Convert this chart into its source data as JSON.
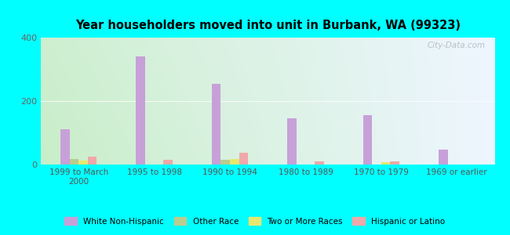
{
  "title": "Year householders moved into unit in Burbank, WA (99323)",
  "categories": [
    "1999 to March\n2000",
    "1995 to 1998",
    "1990 to 1994",
    "1980 to 1989",
    "1970 to 1979",
    "1969 or earlier"
  ],
  "series": {
    "White Non-Hispanic": [
      110,
      340,
      255,
      145,
      155,
      48
    ],
    "Other Race": [
      18,
      0,
      14,
      0,
      0,
      0
    ],
    "Two or More Races": [
      12,
      0,
      18,
      0,
      8,
      0
    ],
    "Hispanic or Latino": [
      25,
      14,
      38,
      10,
      10,
      0
    ]
  },
  "colors": {
    "White Non-Hispanic": "#c8a0d8",
    "Other Race": "#b8cc90",
    "Two or More Races": "#e8e870",
    "Hispanic or Latino": "#f0a8a8"
  },
  "ylim": [
    0,
    400
  ],
  "yticks": [
    0,
    200,
    400
  ],
  "background_color": "#00ffff",
  "watermark": "City-Data.com",
  "bar_width": 0.12,
  "gradient_bottom_left": "#c8eec8",
  "gradient_top_right": "#eef6ff"
}
